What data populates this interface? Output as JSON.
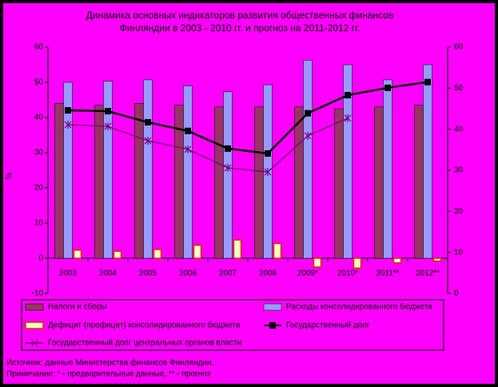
{
  "chart_data": {
    "type": "bar-line",
    "title": [
      "Динамика основных индикаторов развития общественных финансов",
      "Финляндии в 2003 - 2010 гг. и прогноз на 2011-2012 гг."
    ],
    "y_label": "%",
    "categories": [
      "2003",
      "2004",
      "2005",
      "2006",
      "2007",
      "2008",
      "2009*",
      "2010*",
      "2011**",
      "2012**"
    ],
    "series": [
      {
        "name": "Налоги и сборы",
        "kind": "bar",
        "color": "#993366",
        "values": [
          44,
          43.5,
          44,
          43.5,
          43,
          43,
          43,
          42.5,
          43,
          43.5
        ]
      },
      {
        "name": "Расходы консолидированного бюджета",
        "kind": "bar",
        "color": "#9999ff",
        "values": [
          50,
          50.3,
          50.7,
          49,
          47.3,
          49.3,
          56.3,
          55,
          50.7,
          55
        ]
      },
      {
        "name": "Дефицит (профицит) консолидированного бюджета",
        "kind": "bar",
        "color": "#ffffc0",
        "values": [
          2.3,
          2.0,
          2.5,
          3.7,
          5.2,
          4.2,
          -2.5,
          -2.8,
          -1.3,
          -0.8
        ]
      },
      {
        "name": "Государственный долг",
        "kind": "line",
        "axis": "y2",
        "color": "#000000",
        "values": [
          44.6,
          44.4,
          41.7,
          39.6,
          35.3,
          34.1,
          43.9,
          48.3,
          50.1,
          51.5
        ]
      },
      {
        "name": "Государственный долг центральных органов власти",
        "kind": "line",
        "axis": "y2",
        "color": "#800080",
        "values": [
          41.1,
          40.7,
          37.2,
          35.1,
          30.6,
          29.6,
          38.4,
          42.7,
          null,
          null
        ]
      }
    ],
    "ylim": [
      -10,
      60
    ],
    "yticks": [
      -10,
      0,
      10,
      20,
      30,
      40,
      50,
      60
    ],
    "y2lim": [
      0,
      60
    ],
    "y2ticks": [
      0,
      10,
      20,
      30,
      40,
      50,
      60
    ],
    "notes": [
      "Источник: данные Министерства финансов Финляндии.",
      "Примечание: * - предварительные данные, ** - прогноз"
    ]
  }
}
